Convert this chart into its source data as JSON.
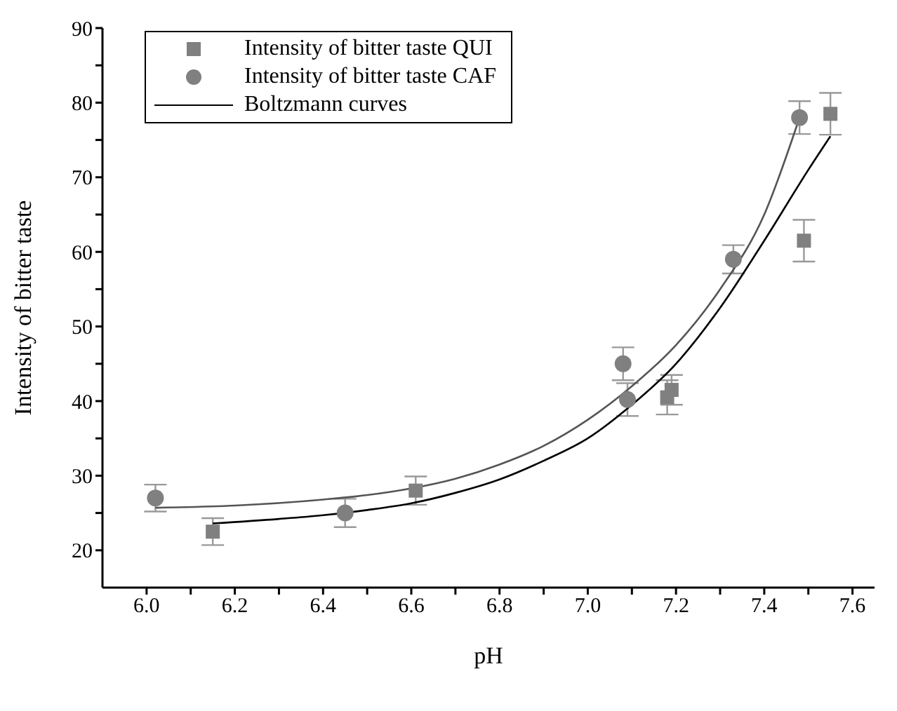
{
  "chart_data": {
    "type": "scatter",
    "xlabel": "pH",
    "ylabel": "Intensity of bitter taste",
    "xlim": [
      5.9,
      7.65
    ],
    "ylim": [
      15,
      90
    ],
    "xticks": [
      {
        "value": 6.0,
        "label": "6.0"
      },
      {
        "value": 6.1,
        "label": null
      },
      {
        "value": 6.2,
        "label": "6.2"
      },
      {
        "value": 6.3,
        "label": null
      },
      {
        "value": 6.4,
        "label": "6.4"
      },
      {
        "value": 6.5,
        "label": null
      },
      {
        "value": 6.6,
        "label": "6.6"
      },
      {
        "value": 6.7,
        "label": null
      },
      {
        "value": 6.8,
        "label": "6.8"
      },
      {
        "value": 6.9,
        "label": null
      },
      {
        "value": 7.0,
        "label": "7.0"
      },
      {
        "value": 7.1,
        "label": null
      },
      {
        "value": 7.2,
        "label": "7.2"
      },
      {
        "value": 7.3,
        "label": null
      },
      {
        "value": 7.4,
        "label": "7.4"
      },
      {
        "value": 7.5,
        "label": null
      },
      {
        "value": 7.6,
        "label": "7.6"
      }
    ],
    "yticks": [
      20,
      {
        "value": 25,
        "label": null
      },
      30,
      {
        "value": 35,
        "label": null
      },
      40,
      {
        "value": 45,
        "label": null
      },
      50,
      {
        "value": 55,
        "label": null
      },
      60,
      {
        "value": 65,
        "label": null
      },
      70,
      {
        "value": 75,
        "label": null
      },
      80,
      {
        "value": 85,
        "label": null
      },
      90
    ],
    "legend": "top left",
    "series": [
      {
        "name": "Intensity of bitter taste QUI",
        "marker": "square",
        "color": "#808080",
        "x": [
          6.15,
          6.61,
          7.18,
          7.19,
          7.49,
          7.55
        ],
        "values": [
          22.5,
          28,
          40.5,
          41.5,
          61.5,
          78.5
        ],
        "errors": [
          1.8,
          1.9,
          2.3,
          2,
          2.8,
          2.8
        ]
      },
      {
        "name": "Intensity of bitter taste CAF",
        "marker": "circle",
        "color": "#808080",
        "x": [
          6.02,
          6.45,
          7.08,
          7.09,
          7.33,
          7.48
        ],
        "values": [
          27,
          25,
          45,
          40.2,
          59,
          78
        ],
        "errors": [
          1.8,
          1.9,
          2.2,
          2.2,
          1.9,
          2.2
        ]
      },
      {
        "name": "Boltzmann curves",
        "type": "line",
        "marker": "none",
        "color": "#000000",
        "x": [
          6.15,
          6.3,
          6.4,
          6.5,
          6.6,
          6.7,
          6.8,
          6.9,
          7.0,
          7.1,
          7.2,
          7.3,
          7.4,
          7.5,
          7.55
        ],
        "values": [
          23.6,
          24.2,
          24.7,
          25.4,
          26.3,
          27.7,
          29.5,
          32,
          35,
          39.5,
          45,
          52.5,
          61.5,
          71,
          75.5
        ]
      },
      {
        "type": "line",
        "marker": "none",
        "color": "#555555",
        "x": [
          6.02,
          6.2,
          6.4,
          6.5,
          6.6,
          6.7,
          6.8,
          6.9,
          7.0,
          7.1,
          7.2,
          7.3,
          7.4,
          7.48
        ],
        "values": [
          25.7,
          26,
          26.8,
          27.4,
          28.3,
          29.6,
          31.5,
          34,
          37.5,
          42,
          47.5,
          55,
          65,
          78
        ]
      }
    ]
  }
}
